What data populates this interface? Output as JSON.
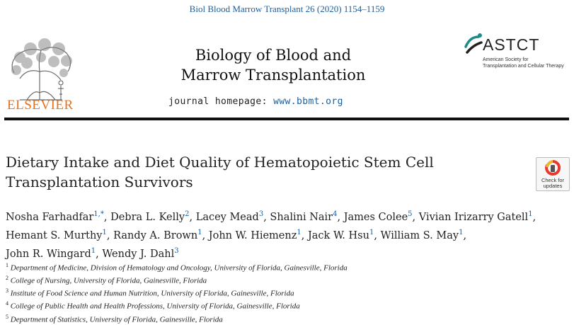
{
  "header": {
    "citation": "Biol Blood Marrow Transplant 26 (2020) 1154–1159",
    "publisher": "ELSEVIER",
    "journal_title_line1": "Biology of Blood and",
    "journal_title_line2": "Marrow Transplantation",
    "homepage_label": "journal homepage: ",
    "homepage_url": "www.bbmt.org",
    "society_name": "ASTCT",
    "society_sub_line1": "American Society for",
    "society_sub_line2": "Transplantation and Cellular Therapy"
  },
  "article": {
    "title_line1": "Dietary Intake and Diet Quality of Hematopoietic Stem Cell",
    "title_line2": "Transplantation Survivors",
    "check_updates_line1": "Check for",
    "check_updates_line2": "updates",
    "authors": [
      {
        "name": "Nosha Farhadfar",
        "sup": "1,*"
      },
      {
        "name": "Debra L. Kelly",
        "sup": "2"
      },
      {
        "name": "Lacey Mead",
        "sup": "3"
      },
      {
        "name": "Shalini Nair",
        "sup": "4"
      },
      {
        "name": "James Colee",
        "sup": "5"
      },
      {
        "name": "Vivian Irizarry Gatell",
        "sup": "1"
      },
      {
        "name": "Hemant S. Murthy",
        "sup": "1"
      },
      {
        "name": "Randy A. Brown",
        "sup": "1"
      },
      {
        "name": "John W. Hiemenz",
        "sup": "1"
      },
      {
        "name": "Jack W. Hsu",
        "sup": "1"
      },
      {
        "name": "William S. May",
        "sup": "1"
      },
      {
        "name": "John R. Wingard",
        "sup": "1"
      },
      {
        "name": "Wendy J. Dahl",
        "sup": "3"
      }
    ],
    "affiliations": [
      {
        "num": "1",
        "text": "Department of Medicine, Division of Hematology and Oncology, University of Florida, Gainesville, Florida"
      },
      {
        "num": "2",
        "text": "College of Nursing, University of Florida, Gainesville, Florida"
      },
      {
        "num": "3",
        "text": "Institute of Food Science and Human Nutrition, University of Florida, Gainesville, Florida"
      },
      {
        "num": "4",
        "text": "College of Public Health and Health Professions, University of Florida, Gainesville, Florida"
      },
      {
        "num": "5",
        "text": "Department of Statistics, University of Florida, Gainesville, Florida"
      }
    ],
    "colors": {
      "link": "#1a5fa0",
      "publisher": "#e9711c",
      "astct_accent": "#1e8a8a"
    }
  }
}
